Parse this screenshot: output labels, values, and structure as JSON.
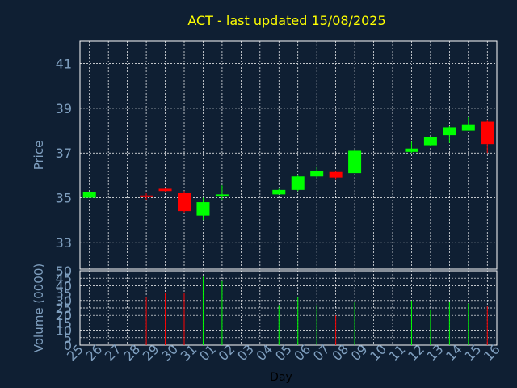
{
  "title": "ACT - last updated 15/08/2025",
  "colors": {
    "background": "#0f1f33",
    "title": "#ffff00",
    "axis_text": "#7f9fbf",
    "grid": "#ffffff",
    "up": "#00ff00",
    "down": "#ff0000"
  },
  "chart_data": [
    {
      "type": "candlestick",
      "ylabel": "Price",
      "ylim": [
        31.8,
        42.0
      ],
      "yticks": [
        33,
        35,
        37,
        39,
        41
      ],
      "grid": true,
      "x_tick_labels": [
        "25",
        "26",
        "27",
        "28",
        "29",
        "30",
        "31",
        "01",
        "02",
        "03",
        "04",
        "05",
        "06",
        "07",
        "08",
        "09",
        "10",
        "11",
        "12",
        "13",
        "14",
        "15",
        "16"
      ],
      "candles": [
        {
          "day": "25",
          "idx": 0,
          "open": 35.0,
          "close": 35.25,
          "high": 35.25,
          "low": 35.0
        },
        {
          "day": "28",
          "idx": 3,
          "open": 35.1,
          "close": 35.05,
          "high": 35.2,
          "low": 34.9
        },
        {
          "day": "29",
          "idx": 4,
          "open": 35.4,
          "close": 35.3,
          "high": 35.45,
          "low": 35.25
        },
        {
          "day": "30",
          "idx": 5,
          "open": 35.2,
          "close": 34.4,
          "high": 35.3,
          "low": 34.3
        },
        {
          "day": "31",
          "idx": 6,
          "open": 34.2,
          "close": 34.8,
          "high": 35.0,
          "low": 34.0
        },
        {
          "day": "01",
          "idx": 7,
          "open": 35.05,
          "close": 35.15,
          "high": 35.55,
          "low": 34.9
        },
        {
          "day": "04",
          "idx": 10,
          "open": 35.15,
          "close": 35.35,
          "high": 35.4,
          "low": 35.15
        },
        {
          "day": "05",
          "idx": 11,
          "open": 35.35,
          "close": 35.95,
          "high": 36.0,
          "low": 35.3
        },
        {
          "day": "06",
          "idx": 12,
          "open": 35.95,
          "close": 36.2,
          "high": 36.4,
          "low": 35.9
        },
        {
          "day": "07",
          "idx": 13,
          "open": 36.15,
          "close": 35.9,
          "high": 36.2,
          "low": 35.8
        },
        {
          "day": "08",
          "idx": 14,
          "open": 36.1,
          "close": 37.1,
          "high": 37.15,
          "low": 36.1
        },
        {
          "day": "11",
          "idx": 17,
          "open": 37.05,
          "close": 37.2,
          "high": 37.5,
          "low": 37.0
        },
        {
          "day": "12",
          "idx": 18,
          "open": 37.35,
          "close": 37.7,
          "high": 37.7,
          "low": 37.3
        },
        {
          "day": "13",
          "idx": 19,
          "open": 37.8,
          "close": 38.15,
          "high": 38.2,
          "low": 37.45
        },
        {
          "day": "14",
          "idx": 20,
          "open": 38.0,
          "close": 38.25,
          "high": 38.6,
          "low": 38.0
        },
        {
          "day": "15",
          "idx": 21,
          "open": 38.4,
          "close": 37.4,
          "high": 38.45,
          "low": 37.0
        }
      ]
    },
    {
      "type": "bar",
      "xlabel": "Day",
      "ylabel": "Volume (0000)",
      "ylim": [
        0,
        50
      ],
      "yticks": [
        0,
        5,
        10,
        15,
        20,
        25,
        30,
        35,
        40,
        45,
        50
      ],
      "grid": true,
      "x_tick_labels": [
        "25",
        "26",
        "27",
        "28",
        "29",
        "30",
        "31",
        "01",
        "02",
        "03",
        "04",
        "05",
        "06",
        "07",
        "08",
        "09",
        "10",
        "11",
        "12",
        "13",
        "14",
        "15",
        "16"
      ],
      "bars": [
        {
          "day": "25",
          "idx": 0,
          "value": 0,
          "direction": "up"
        },
        {
          "day": "28",
          "idx": 3,
          "value": 32,
          "direction": "down"
        },
        {
          "day": "29",
          "idx": 4,
          "value": 35,
          "direction": "down"
        },
        {
          "day": "30",
          "idx": 5,
          "value": 35,
          "direction": "down"
        },
        {
          "day": "31",
          "idx": 6,
          "value": 46,
          "direction": "up"
        },
        {
          "day": "01",
          "idx": 7,
          "value": 43,
          "direction": "up"
        },
        {
          "day": "04",
          "idx": 10,
          "value": 27,
          "direction": "up"
        },
        {
          "day": "05",
          "idx": 11,
          "value": 32,
          "direction": "up"
        },
        {
          "day": "06",
          "idx": 12,
          "value": 27,
          "direction": "up"
        },
        {
          "day": "07",
          "idx": 13,
          "value": 20,
          "direction": "down"
        },
        {
          "day": "08",
          "idx": 14,
          "value": 29,
          "direction": "up"
        },
        {
          "day": "11",
          "idx": 17,
          "value": 30,
          "direction": "up"
        },
        {
          "day": "12",
          "idx": 18,
          "value": 24,
          "direction": "up"
        },
        {
          "day": "13",
          "idx": 19,
          "value": 29,
          "direction": "up"
        },
        {
          "day": "14",
          "idx": 20,
          "value": 28,
          "direction": "up"
        },
        {
          "day": "15",
          "idx": 21,
          "value": 26,
          "direction": "down"
        }
      ]
    }
  ]
}
